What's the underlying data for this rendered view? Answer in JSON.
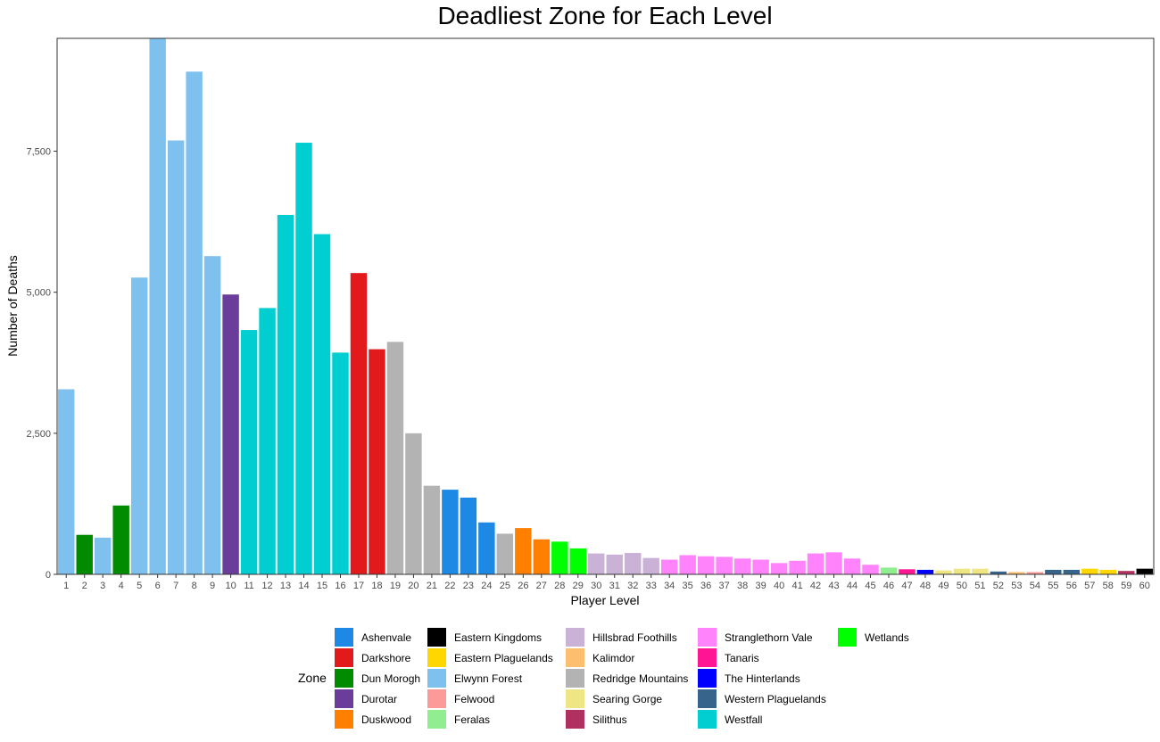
{
  "chart_data": {
    "type": "bar",
    "title": "Deadliest Zone for Each Level",
    "xlabel": "Player Level",
    "ylabel": "Number of Deaths",
    "ylim": [
      0,
      9500
    ],
    "yticks": [
      0,
      2500,
      5000,
      7500
    ],
    "ytick_labels": [
      "0",
      "2,500",
      "5,000",
      "7,500"
    ],
    "grid": false,
    "legend_title": "Zone",
    "legend_position": "bottom",
    "categories": [
      "1",
      "2",
      "3",
      "4",
      "5",
      "6",
      "7",
      "8",
      "9",
      "10",
      "11",
      "12",
      "13",
      "14",
      "15",
      "16",
      "17",
      "18",
      "19",
      "20",
      "21",
      "22",
      "23",
      "24",
      "25",
      "26",
      "27",
      "28",
      "29",
      "30",
      "31",
      "32",
      "33",
      "34",
      "35",
      "36",
      "37",
      "38",
      "39",
      "40",
      "41",
      "42",
      "43",
      "44",
      "45",
      "46",
      "47",
      "48",
      "49",
      "50",
      "51",
      "52",
      "53",
      "54",
      "55",
      "56",
      "57",
      "58",
      "59",
      "60"
    ],
    "values": [
      3280,
      700,
      650,
      1220,
      5260,
      9500,
      7690,
      8910,
      5640,
      4960,
      4330,
      4720,
      6370,
      7650,
      6030,
      3930,
      5340,
      3990,
      4120,
      2500,
      1570,
      1500,
      1360,
      920,
      720,
      820,
      620,
      580,
      460,
      370,
      350,
      380,
      290,
      260,
      340,
      320,
      310,
      280,
      260,
      200,
      240,
      370,
      390,
      280,
      170,
      120,
      90,
      80,
      70,
      100,
      100,
      50,
      40,
      40,
      80,
      80,
      100,
      80,
      60,
      100
    ],
    "zones": [
      "Elwynn Forest",
      "Dun Morogh",
      "Elwynn Forest",
      "Dun Morogh",
      "Elwynn Forest",
      "Elwynn Forest",
      "Elwynn Forest",
      "Elwynn Forest",
      "Elwynn Forest",
      "Durotar",
      "Westfall",
      "Westfall",
      "Westfall",
      "Westfall",
      "Westfall",
      "Westfall",
      "Darkshore",
      "Darkshore",
      "Redridge Mountains",
      "Redridge Mountains",
      "Redridge Mountains",
      "Ashenvale",
      "Ashenvale",
      "Ashenvale",
      "Redridge Mountains",
      "Duskwood",
      "Duskwood",
      "Wetlands",
      "Wetlands",
      "Hillsbrad Foothills",
      "Hillsbrad Foothills",
      "Hillsbrad Foothills",
      "Hillsbrad Foothills",
      "Stranglethorn Vale",
      "Stranglethorn Vale",
      "Stranglethorn Vale",
      "Stranglethorn Vale",
      "Stranglethorn Vale",
      "Stranglethorn Vale",
      "Stranglethorn Vale",
      "Stranglethorn Vale",
      "Stranglethorn Vale",
      "Stranglethorn Vale",
      "Stranglethorn Vale",
      "Stranglethorn Vale",
      "Feralas",
      "Tanaris",
      "The Hinterlands",
      "Searing Gorge",
      "Searing Gorge",
      "Searing Gorge",
      "Western Plaguelands",
      "Kalimdor",
      "Felwood",
      "Western Plaguelands",
      "Western Plaguelands",
      "Eastern Plaguelands",
      "Eastern Plaguelands",
      "Silithus",
      "Eastern Kingdoms"
    ],
    "legend": [
      {
        "name": "Ashenvale",
        "color": "#1e88e5"
      },
      {
        "name": "Darkshore",
        "color": "#e31a1c"
      },
      {
        "name": "Dun Morogh",
        "color": "#008b00"
      },
      {
        "name": "Durotar",
        "color": "#6a3d9a"
      },
      {
        "name": "Duskwood",
        "color": "#ff7f00"
      },
      {
        "name": "Eastern Kingdoms",
        "color": "#000000"
      },
      {
        "name": "Eastern Plaguelands",
        "color": "#ffd700"
      },
      {
        "name": "Elwynn Forest",
        "color": "#7ec0ee"
      },
      {
        "name": "Felwood",
        "color": "#fb9a99"
      },
      {
        "name": "Feralas",
        "color": "#90ee90"
      },
      {
        "name": "Hillsbrad Foothills",
        "color": "#cab2d6"
      },
      {
        "name": "Kalimdor",
        "color": "#fdbf6f"
      },
      {
        "name": "Redridge Mountains",
        "color": "#b3b3b3"
      },
      {
        "name": "Searing Gorge",
        "color": "#eee685"
      },
      {
        "name": "Silithus",
        "color": "#b03060"
      },
      {
        "name": "Stranglethorn Vale",
        "color": "#ff83fa"
      },
      {
        "name": "Tanaris",
        "color": "#ff1493"
      },
      {
        "name": "The Hinterlands",
        "color": "#0000ff"
      },
      {
        "name": "Western Plaguelands",
        "color": "#36648b"
      },
      {
        "name": "Westfall",
        "color": "#00ced1"
      },
      {
        "name": "Wetlands",
        "color": "#00ff00"
      }
    ]
  }
}
